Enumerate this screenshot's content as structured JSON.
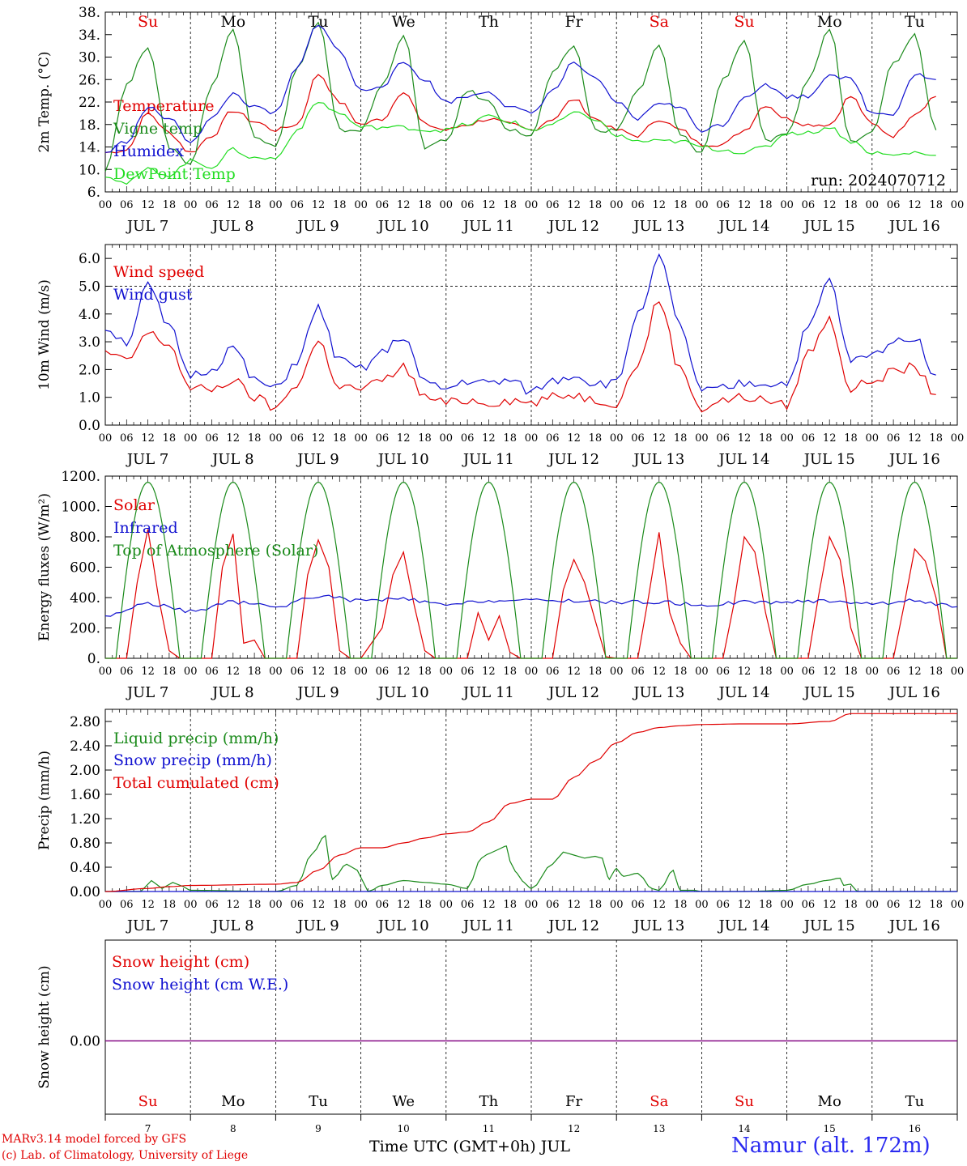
{
  "run_label": "run: 2024070712",
  "xaxis_title": "Time UTC (GMT+0h) JUL",
  "credit_line1": "MARv3.14 model forced by GFS",
  "credit_line2": "(c) Lab. of Climatology, University of Liege",
  "station": "Namur (alt. 172m)",
  "days": [
    {
      "date": "7",
      "label": "JUL  7",
      "dow": "Su",
      "weekend": true
    },
    {
      "date": "8",
      "label": "JUL  8",
      "dow": "Mo",
      "weekend": false
    },
    {
      "date": "9",
      "label": "JUL  9",
      "dow": "Tu",
      "weekend": false
    },
    {
      "date": "10",
      "label": "JUL 10",
      "dow": "We",
      "weekend": false
    },
    {
      "date": "11",
      "label": "JUL 11",
      "dow": "Th",
      "weekend": false
    },
    {
      "date": "12",
      "label": "JUL 12",
      "dow": "Fr",
      "weekend": false
    },
    {
      "date": "13",
      "label": "JUL 13",
      "dow": "Sa",
      "weekend": true
    },
    {
      "date": "14",
      "label": "JUL 14",
      "dow": "Su",
      "weekend": true
    },
    {
      "date": "15",
      "label": "JUL 15",
      "dow": "Mo",
      "weekend": false
    },
    {
      "date": "16",
      "label": "JUL 16",
      "dow": "Tu",
      "weekend": false
    }
  ],
  "hour_ticks": [
    "00",
    "06",
    "12",
    "18"
  ],
  "final_tick": "00",
  "colors": {
    "red": "#e00000",
    "green": "#1a8a1a",
    "blue": "#1010d0",
    "lightgreen": "#22dd22",
    "weekend": "#e00000",
    "station": "#2a2af0",
    "purple": "#800080"
  },
  "chart_data": [
    {
      "type": "line",
      "id": "temp",
      "ylabel": "2m Temp. (°C)",
      "ylim": [
        6,
        38
      ],
      "yticks": [
        "6.",
        "10.",
        "14.",
        "18.",
        "22.",
        "26.",
        "30.",
        "34.",
        "38."
      ],
      "ytick_values": [
        6,
        10,
        14,
        18,
        22,
        26,
        30,
        34,
        38
      ],
      "x_unit": "hours from 2024-07-07 00 UTC",
      "series": [
        {
          "name": "Temperature",
          "color": "red",
          "x": [
            0,
            6,
            12,
            18,
            24,
            30,
            36,
            42,
            48,
            54,
            60,
            66,
            72,
            78,
            84,
            90,
            96,
            102,
            108,
            114,
            120,
            126,
            132,
            138,
            144,
            150,
            156,
            162,
            168,
            174,
            180,
            186,
            192,
            198,
            204,
            210,
            216,
            222,
            228,
            234
          ],
          "values": [
            13,
            13.5,
            20,
            16.5,
            13,
            16,
            20.5,
            18.5,
            17,
            18,
            27,
            22,
            18,
            19,
            24,
            18,
            17,
            18,
            19,
            18,
            17,
            19,
            22.5,
            19,
            17,
            16,
            19,
            17,
            14.5,
            14.5,
            17,
            21.5,
            19,
            18,
            18,
            23,
            18,
            16,
            20,
            23
          ]
        },
        {
          "name": "Vigne temp",
          "color": "green",
          "x": [
            0,
            6,
            12,
            18,
            24,
            30,
            36,
            42,
            48,
            54,
            60,
            66,
            72,
            78,
            84,
            90,
            96,
            102,
            108,
            114,
            120,
            126,
            132,
            138,
            144,
            150,
            156,
            162,
            168,
            174,
            180,
            186,
            192,
            198,
            204,
            210,
            216,
            222,
            228,
            234
          ],
          "values": [
            10,
            25,
            32,
            14,
            11,
            25,
            35,
            16,
            14,
            28,
            36,
            17,
            17,
            25,
            34,
            14,
            15,
            24,
            22,
            17,
            16,
            27,
            32,
            17,
            17,
            24,
            32,
            16,
            13,
            26,
            33,
            15,
            16,
            26,
            35,
            15,
            17,
            29,
            34,
            17
          ]
        },
        {
          "name": "Humidex",
          "color": "blue",
          "x": [
            0,
            6,
            12,
            18,
            24,
            30,
            36,
            42,
            48,
            54,
            60,
            66,
            72,
            78,
            84,
            90,
            96,
            102,
            108,
            114,
            120,
            126,
            132,
            138,
            144,
            150,
            156,
            162,
            168,
            174,
            180,
            186,
            192,
            198,
            204,
            210,
            216,
            222,
            228,
            234
          ],
          "values": [
            13,
            15,
            21,
            19,
            15,
            19,
            23.5,
            21,
            20,
            28,
            36,
            31,
            24,
            25,
            29,
            26,
            22,
            23,
            24,
            21,
            20,
            24,
            29,
            26,
            22,
            19,
            22,
            21,
            17,
            18,
            23,
            25,
            23,
            23,
            27,
            26,
            20,
            20,
            27,
            26
          ]
        },
        {
          "name": "DewPoint Temp",
          "color": "lightgreen",
          "x": [
            0,
            6,
            12,
            18,
            24,
            30,
            36,
            42,
            48,
            54,
            60,
            66,
            72,
            78,
            84,
            90,
            96,
            102,
            108,
            114,
            120,
            126,
            132,
            138,
            144,
            150,
            156,
            162,
            168,
            174,
            180,
            186,
            192,
            198,
            204,
            210,
            216,
            222,
            228,
            234
          ],
          "values": [
            9,
            7.5,
            10,
            9,
            11.5,
            10.5,
            13.5,
            12,
            12,
            17,
            22,
            20,
            17.5,
            17.5,
            17.5,
            17,
            17,
            18,
            19.5,
            18.5,
            17,
            18,
            20,
            19,
            16,
            15,
            15,
            15,
            14,
            13.5,
            13,
            14,
            16.5,
            16.5,
            17.5,
            15,
            13,
            12.5,
            13,
            12.5
          ]
        }
      ]
    },
    {
      "type": "line",
      "id": "wind",
      "ylabel": "10m Wind (m/s)",
      "ylim": [
        0,
        6.5
      ],
      "yticks": [
        "0.0",
        "1.0",
        "2.0",
        "3.0",
        "4.0",
        "5.0",
        "6.0"
      ],
      "ytick_values": [
        0,
        1,
        2,
        3,
        4,
        5,
        6
      ],
      "reference_line": 5,
      "x_unit": "hours from 2024-07-07 00 UTC",
      "series": [
        {
          "name": "Wind speed",
          "color": "red",
          "x": [
            0,
            6,
            12,
            18,
            24,
            30,
            36,
            42,
            48,
            54,
            60,
            66,
            72,
            78,
            84,
            90,
            96,
            102,
            108,
            114,
            120,
            126,
            132,
            138,
            144,
            150,
            156,
            162,
            168,
            174,
            180,
            186,
            192,
            198,
            204,
            210,
            216,
            222,
            228,
            234
          ],
          "values": [
            2.6,
            2.3,
            3.3,
            2.9,
            1.3,
            1.3,
            1.6,
            1.0,
            0.6,
            1.5,
            3.0,
            1.4,
            1.3,
            1.6,
            2.1,
            1.0,
            0.8,
            0.9,
            0.8,
            0.9,
            0.8,
            1.0,
            1.1,
            0.9,
            0.8,
            2.2,
            4.5,
            2.0,
            0.6,
            0.9,
            1.0,
            0.9,
            0.7,
            2.6,
            3.8,
            1.3,
            1.6,
            1.9,
            2.1,
            1.1
          ]
        },
        {
          "name": "Wind gust",
          "color": "blue",
          "x": [
            0,
            6,
            12,
            18,
            24,
            30,
            36,
            42,
            48,
            54,
            60,
            66,
            72,
            78,
            84,
            90,
            96,
            102,
            108,
            114,
            120,
            126,
            132,
            138,
            144,
            150,
            156,
            162,
            168,
            174,
            180,
            186,
            192,
            198,
            204,
            210,
            216,
            222,
            228,
            234
          ],
          "values": [
            3.5,
            3.0,
            5.0,
            3.5,
            1.8,
            2.0,
            2.8,
            1.6,
            1.3,
            2.3,
            4.2,
            2.3,
            2.0,
            2.6,
            3.2,
            1.5,
            1.3,
            1.6,
            1.5,
            1.6,
            1.2,
            1.6,
            1.8,
            1.5,
            1.5,
            4.0,
            6.0,
            3.5,
            1.2,
            1.3,
            1.5,
            1.5,
            1.5,
            3.5,
            5.2,
            2.3,
            2.5,
            3.0,
            3.2,
            1.8
          ]
        }
      ]
    },
    {
      "type": "line",
      "id": "energy",
      "ylabel": "Energy fluxes (W/m²)",
      "ylim": [
        0,
        1200
      ],
      "yticks": [
        "0.",
        "200.",
        "400.",
        "600.",
        "800.",
        "1000.",
        "1200."
      ],
      "ytick_values": [
        0,
        200,
        400,
        600,
        800,
        1000,
        1200
      ],
      "x_unit": "hours from 2024-07-07 00 UTC",
      "series": [
        {
          "name": "Solar",
          "color": "red",
          "x": [
            0,
            6,
            9,
            12,
            15,
            18,
            21,
            24,
            30,
            33,
            36,
            39,
            42,
            45,
            48,
            54,
            57,
            60,
            63,
            66,
            69,
            72,
            78,
            81,
            84,
            87,
            90,
            93,
            96,
            102,
            105,
            108,
            111,
            114,
            117,
            120,
            126,
            129,
            132,
            135,
            138,
            141,
            144,
            150,
            153,
            156,
            159,
            162,
            165,
            168,
            174,
            177,
            180,
            183,
            186,
            189,
            192,
            198,
            201,
            204,
            207,
            210,
            213,
            216,
            222,
            225,
            228,
            231,
            234,
            237,
            240
          ],
          "values": [
            0,
            0,
            500,
            850,
            400,
            50,
            0,
            0,
            0,
            600,
            820,
            100,
            120,
            0,
            0,
            0,
            550,
            780,
            600,
            50,
            0,
            0,
            200,
            550,
            700,
            350,
            50,
            0,
            0,
            0,
            300,
            120,
            280,
            40,
            0,
            0,
            0,
            450,
            650,
            500,
            250,
            10,
            0,
            0,
            400,
            830,
            300,
            100,
            0,
            0,
            0,
            350,
            800,
            700,
            300,
            0,
            0,
            0,
            420,
            800,
            650,
            200,
            0,
            0,
            0,
            350,
            720,
            640,
            400,
            0,
            0
          ]
        },
        {
          "name": "Infrared",
          "color": "blue",
          "x": [
            0,
            12,
            24,
            36,
            48,
            60,
            72,
            84,
            96,
            108,
            120,
            132,
            144,
            156,
            168,
            180,
            192,
            204,
            216,
            228,
            240
          ],
          "values": [
            280,
            360,
            310,
            370,
            340,
            410,
            380,
            390,
            350,
            380,
            380,
            380,
            370,
            370,
            350,
            370,
            370,
            380,
            360,
            380,
            340
          ]
        },
        {
          "name": "Top of Atmosphere (Solar)",
          "color": "green",
          "x": "computed: diurnal sine, peak 1160 at 12 UTC, zero near 03 and 21 UTC",
          "peak": 1160
        }
      ]
    },
    {
      "type": "line",
      "id": "precip",
      "ylabel": "Precip (mm/h)",
      "ylim": [
        0,
        3.0
      ],
      "yticks": [
        "0.00",
        "0.40",
        "0.80",
        "1.20",
        "1.60",
        "2.00",
        "2.40",
        "2.80"
      ],
      "ytick_values": [
        0,
        0.4,
        0.8,
        1.2,
        1.6,
        2.0,
        2.4,
        2.8
      ],
      "x_unit": "hours from 2024-07-07 00 UTC",
      "series": [
        {
          "name": "Liquid precip (mm/h)",
          "color": "green",
          "x": [
            0,
            10,
            13,
            16,
            19,
            22,
            24,
            48,
            54,
            58,
            62,
            64,
            68,
            71,
            74,
            78,
            84,
            90,
            96,
            102,
            106,
            108,
            111,
            113,
            114,
            116,
            118,
            120,
            126,
            129,
            132,
            135,
            138,
            140,
            142,
            144,
            146,
            150,
            154,
            156,
            160,
            162,
            166,
            168,
            180,
            192,
            198,
            203,
            207,
            208,
            210,
            212,
            240
          ],
          "values": [
            0,
            0,
            0.18,
            0.05,
            0.15,
            0.08,
            0.02,
            0,
            0.1,
            0.6,
            0.92,
            0.2,
            0.45,
            0.35,
            0,
            0.1,
            0.18,
            0.15,
            0.12,
            0.05,
            0.55,
            0.62,
            0.7,
            0.75,
            0.5,
            0.3,
            0.15,
            0.05,
            0.45,
            0.65,
            0.6,
            0.55,
            0.58,
            0.55,
            0.2,
            0.38,
            0.25,
            0.3,
            0.05,
            0.02,
            0.35,
            0.02,
            0.02,
            0,
            0,
            0.02,
            0.12,
            0.18,
            0.22,
            0.1,
            0.12,
            0,
            0
          ]
        },
        {
          "name": "Snow precip (mm/h)",
          "color": "blue",
          "x": [
            0,
            240
          ],
          "values": [
            0,
            0
          ]
        },
        {
          "name": "Total cumulated (cm)",
          "color": "red",
          "x": [
            0,
            12,
            18,
            24,
            48,
            54,
            60,
            66,
            72,
            78,
            84,
            90,
            96,
            102,
            108,
            114,
            120,
            126,
            132,
            138,
            144,
            150,
            156,
            162,
            168,
            180,
            192,
            204,
            210,
            216,
            240
          ],
          "values": [
            0,
            0.05,
            0.08,
            0.1,
            0.12,
            0.15,
            0.35,
            0.6,
            0.72,
            0.72,
            0.8,
            0.88,
            0.95,
            0.98,
            1.15,
            1.45,
            1.52,
            1.52,
            1.88,
            2.15,
            2.45,
            2.62,
            2.7,
            2.73,
            2.75,
            2.76,
            2.76,
            2.8,
            2.93,
            2.93,
            2.93
          ]
        }
      ]
    },
    {
      "type": "line",
      "id": "snow",
      "ylabel": "Snow height (cm)",
      "yticks": [
        "0.00"
      ],
      "ytick_values": [
        0
      ],
      "series": [
        {
          "name": "Snow height (cm)",
          "color": "red",
          "x": [
            0,
            240
          ],
          "values": [
            0,
            0
          ]
        },
        {
          "name": "Snow height (cm W.E.)",
          "color": "blue",
          "x": [
            0,
            240
          ],
          "values": [
            0,
            0
          ]
        }
      ]
    }
  ]
}
